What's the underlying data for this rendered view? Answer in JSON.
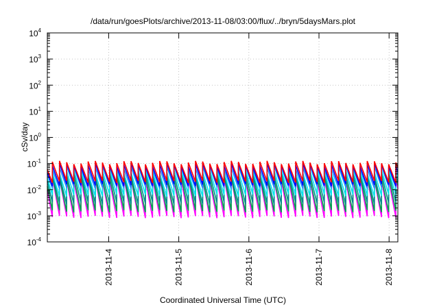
{
  "chart_data": {
    "type": "line",
    "title": "/data/run/goesPlots/archive/2013-11-08/03:00/flux/../bryn/5daysMars.plot",
    "xlabel": "Coordinated Universal Time (UTC)",
    "ylabel": "cSv/day",
    "x_scale": "time",
    "y_scale": "log",
    "xlim": [
      "2013-11-03T03:00:00Z",
      "2013-11-08T03:00:00Z"
    ],
    "ylim": [
      0.0001,
      10000
    ],
    "x_ticks": [
      "2013-11-4",
      "2013-11-5",
      "2013-11-6",
      "2013-11-7",
      "2013-11-8"
    ],
    "y_ticks": [
      {
        "base": "10",
        "exp": "-4"
      },
      {
        "base": "10",
        "exp": "-3"
      },
      {
        "base": "10",
        "exp": "-2"
      },
      {
        "base": "10",
        "exp": "-1"
      },
      {
        "base": "10",
        "exp": "0"
      },
      {
        "base": "10",
        "exp": "1"
      },
      {
        "base": "10",
        "exp": "2"
      },
      {
        "base": "10",
        "exp": "3"
      },
      {
        "base": "10",
        "exp": "4"
      }
    ],
    "grid": true,
    "sawtooth_period_hours": 2.45,
    "series": [
      {
        "color": "#ff00ff",
        "peak": 0.025,
        "trough": 0.0009
      },
      {
        "color": "#00a050",
        "peak": 0.03,
        "trough": 0.0015
      },
      {
        "color": "#008b8b",
        "peak": 0.04,
        "trough": 0.003
      },
      {
        "color": "#00e5ee",
        "peak": 0.05,
        "trough": 0.006
      },
      {
        "color": "#1e90ff",
        "peak": 0.07,
        "trough": 0.012
      },
      {
        "color": "#0000ff",
        "peak": 0.09,
        "trough": 0.015
      },
      {
        "color": "#ff0000",
        "peak": 0.11,
        "trough": 0.02
      }
    ]
  }
}
